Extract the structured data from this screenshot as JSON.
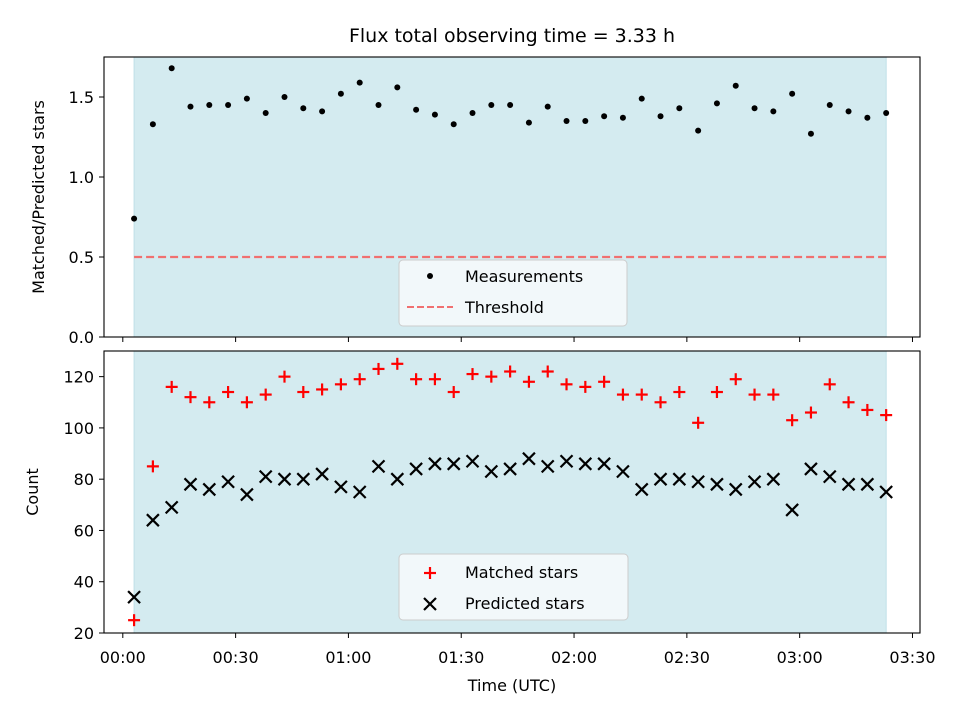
{
  "colors": {
    "shade": "#d4ebf0",
    "shade_edge": "#bfe0e8",
    "threshold": "#f07070",
    "measurement": "#000000",
    "matched": "#ff0000",
    "predicted": "#000000",
    "legend_bg": "#f7fafc"
  },
  "chart_data": [
    {
      "type": "scatter",
      "title": "Flux total observing time = 3.33 h",
      "xlabel": "",
      "ylabel": "Matched/Predicted stars",
      "xlim_min": [
        -5,
        212
      ],
      "ylim": [
        0,
        1.75
      ],
      "yticks": [
        0.0,
        0.5,
        1.0,
        1.5
      ],
      "ytick_labels": [
        "0.0",
        "0.5",
        "1.0",
        "1.5"
      ],
      "shaded_span_min": [
        3,
        203
      ],
      "threshold": {
        "name": "Threshold",
        "value": 0.5,
        "x_range_min": [
          3,
          203
        ]
      },
      "legend_location": "lower center",
      "series": [
        {
          "name": "Measurements",
          "marker": "dot",
          "x_min": [
            3,
            8,
            13,
            18,
            23,
            28,
            33,
            38,
            43,
            48,
            53,
            58,
            63,
            68,
            73,
            78,
            83,
            88,
            93,
            98,
            103,
            108,
            113,
            118,
            123,
            128,
            133,
            138,
            143,
            148,
            153,
            158,
            163,
            168,
            173,
            178,
            183,
            188,
            193,
            198,
            203
          ],
          "y": [
            0.74,
            1.33,
            1.68,
            1.44,
            1.45,
            1.45,
            1.49,
            1.4,
            1.5,
            1.43,
            1.41,
            1.52,
            1.59,
            1.45,
            1.56,
            1.42,
            1.39,
            1.33,
            1.4,
            1.45,
            1.45,
            1.34,
            1.44,
            1.35,
            1.35,
            1.38,
            1.37,
            1.49,
            1.38,
            1.43,
            1.29,
            1.46,
            1.57,
            1.43,
            1.41,
            1.52,
            1.27,
            1.45,
            1.41,
            1.37,
            1.4
          ]
        }
      ]
    },
    {
      "type": "scatter",
      "title": "",
      "xlabel": "Time (UTC)",
      "ylabel": "Count",
      "xlim_min": [
        -5,
        212
      ],
      "ylim": [
        20,
        130
      ],
      "yticks": [
        20,
        40,
        60,
        80,
        100,
        120
      ],
      "ytick_labels": [
        "20",
        "40",
        "60",
        "80",
        "100",
        "120"
      ],
      "xticks_min": [
        0,
        30,
        60,
        90,
        120,
        150,
        180,
        210
      ],
      "xtick_labels": [
        "00:00",
        "00:30",
        "01:00",
        "01:30",
        "02:00",
        "02:30",
        "03:00",
        "03:30"
      ],
      "shaded_span_min": [
        3,
        203
      ],
      "legend_location": "lower center",
      "series": [
        {
          "name": "Matched stars",
          "marker": "plus",
          "x_min": [
            3,
            8,
            13,
            18,
            23,
            28,
            33,
            38,
            43,
            48,
            53,
            58,
            63,
            68,
            73,
            78,
            83,
            88,
            93,
            98,
            103,
            108,
            113,
            118,
            123,
            128,
            133,
            138,
            143,
            148,
            153,
            158,
            163,
            168,
            173,
            178,
            183,
            188,
            193,
            198,
            203
          ],
          "y": [
            25,
            85,
            116,
            112,
            110,
            114,
            110,
            113,
            120,
            114,
            115,
            117,
            119,
            123,
            125,
            119,
            119,
            114,
            121,
            120,
            122,
            118,
            122,
            117,
            116,
            118,
            113,
            113,
            110,
            114,
            102,
            114,
            119,
            113,
            113,
            103,
            106,
            117,
            110,
            107,
            105
          ]
        },
        {
          "name": "Predicted stars",
          "marker": "x",
          "x_min": [
            3,
            8,
            13,
            18,
            23,
            28,
            33,
            38,
            43,
            48,
            53,
            58,
            63,
            68,
            73,
            78,
            83,
            88,
            93,
            98,
            103,
            108,
            113,
            118,
            123,
            128,
            133,
            138,
            143,
            148,
            153,
            158,
            163,
            168,
            173,
            178,
            183,
            188,
            193,
            198,
            203
          ],
          "y": [
            34,
            64,
            69,
            78,
            76,
            79,
            74,
            81,
            80,
            80,
            82,
            77,
            75,
            85,
            80,
            84,
            86,
            86,
            87,
            83,
            84,
            88,
            85,
            87,
            86,
            86,
            83,
            76,
            80,
            80,
            79,
            78,
            76,
            79,
            80,
            68,
            84,
            81,
            78,
            78,
            75
          ]
        }
      ]
    }
  ]
}
